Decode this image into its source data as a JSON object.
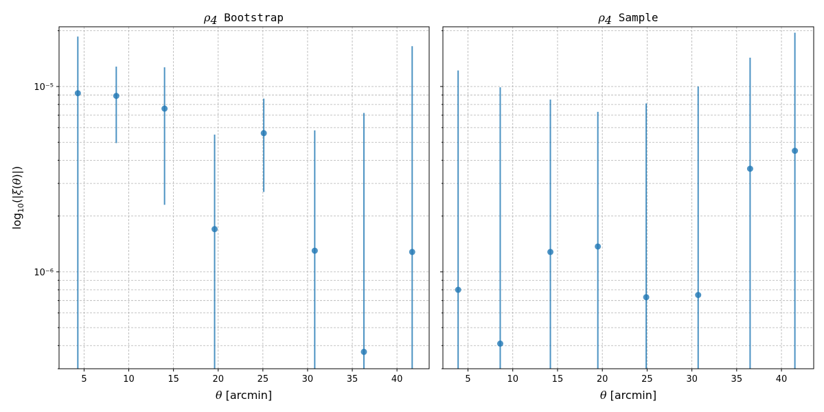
{
  "colors": {
    "marker": "#1f77b4",
    "grid": "#b0b0b0",
    "axes": "#000000"
  },
  "chart_data": [
    {
      "type": "scatter",
      "title_symbol": "ρ",
      "title_subscript": "4",
      "title_text": "Bootstrap",
      "xlabel_symbol": "θ",
      "xlabel_text": "[arcmin]",
      "ylabel": "log10(|ξ(θ)|)",
      "yscale": "log",
      "xlim": [
        2.2,
        43.6
      ],
      "ylim": [
        3e-07,
        2.1e-05
      ],
      "xticks": [
        5,
        10,
        15,
        20,
        25,
        30,
        35,
        40
      ],
      "yticks": [
        {
          "value": 1e-05,
          "label": "10⁻⁵"
        },
        {
          "value": 1e-06,
          "label": "10⁻⁶"
        }
      ],
      "grid": true,
      "series": [
        {
          "x": [
            4.3,
            8.6,
            14.0,
            19.6,
            25.1,
            30.8,
            36.3,
            41.7
          ],
          "y": [
            9.2e-06,
            8.9e-06,
            7.6e-06,
            1.7e-06,
            5.6e-06,
            1.3e-06,
            3.7e-07,
            1.28e-06
          ],
          "yerr_low": [
            3e-07,
            4.95e-06,
            2.3e-06,
            3e-07,
            2.7e-06,
            3e-07,
            3e-07,
            3e-07
          ],
          "yerr_high": [
            1.86e-05,
            1.28e-05,
            1.27e-05,
            5.5e-06,
            8.6e-06,
            5.8e-06,
            7.2e-06,
            1.65e-05
          ]
        }
      ]
    },
    {
      "type": "scatter",
      "title_symbol": "ρ",
      "title_subscript": "4",
      "title_text": "Sample",
      "xlabel_symbol": "θ",
      "xlabel_text": "[arcmin]",
      "yscale": "log",
      "xlim": [
        2.2,
        43.6
      ],
      "ylim": [
        3e-07,
        2.1e-05
      ],
      "xticks": [
        5,
        10,
        15,
        20,
        25,
        30,
        35,
        40
      ],
      "grid": true,
      "series": [
        {
          "x": [
            3.9,
            8.6,
            14.2,
            19.5,
            24.9,
            30.7,
            36.5,
            41.5
          ],
          "y": [
            8e-07,
            4.1e-07,
            1.28e-06,
            1.37e-06,
            7.3e-07,
            7.5e-07,
            3.6e-06,
            4.5e-06
          ],
          "yerr_low": [
            3e-07,
            3e-07,
            3e-07,
            3e-07,
            3e-07,
            3e-07,
            3e-07,
            3e-07
          ],
          "yerr_high": [
            1.22e-05,
            9.9e-06,
            8.5e-06,
            7.3e-06,
            8.1e-06,
            1e-05,
            1.43e-05,
            1.95e-05
          ]
        }
      ]
    }
  ]
}
